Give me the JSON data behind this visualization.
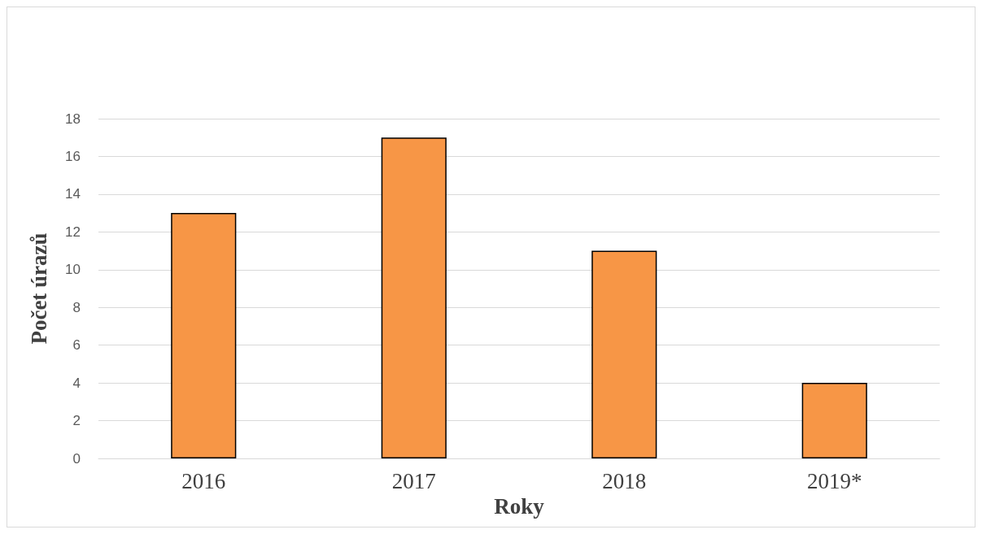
{
  "chart_data": {
    "type": "bar",
    "xlabel": "Roky",
    "ylabel": "Počet úrazů",
    "categories": [
      "2016",
      "2017",
      "2018",
      "2019*"
    ],
    "values": [
      13,
      17,
      11,
      4
    ],
    "color": "#f79646",
    "ylim": [
      0,
      18
    ],
    "yticks": [
      0,
      2,
      4,
      6,
      8,
      10,
      12,
      14,
      16,
      18
    ],
    "grid": "y"
  }
}
